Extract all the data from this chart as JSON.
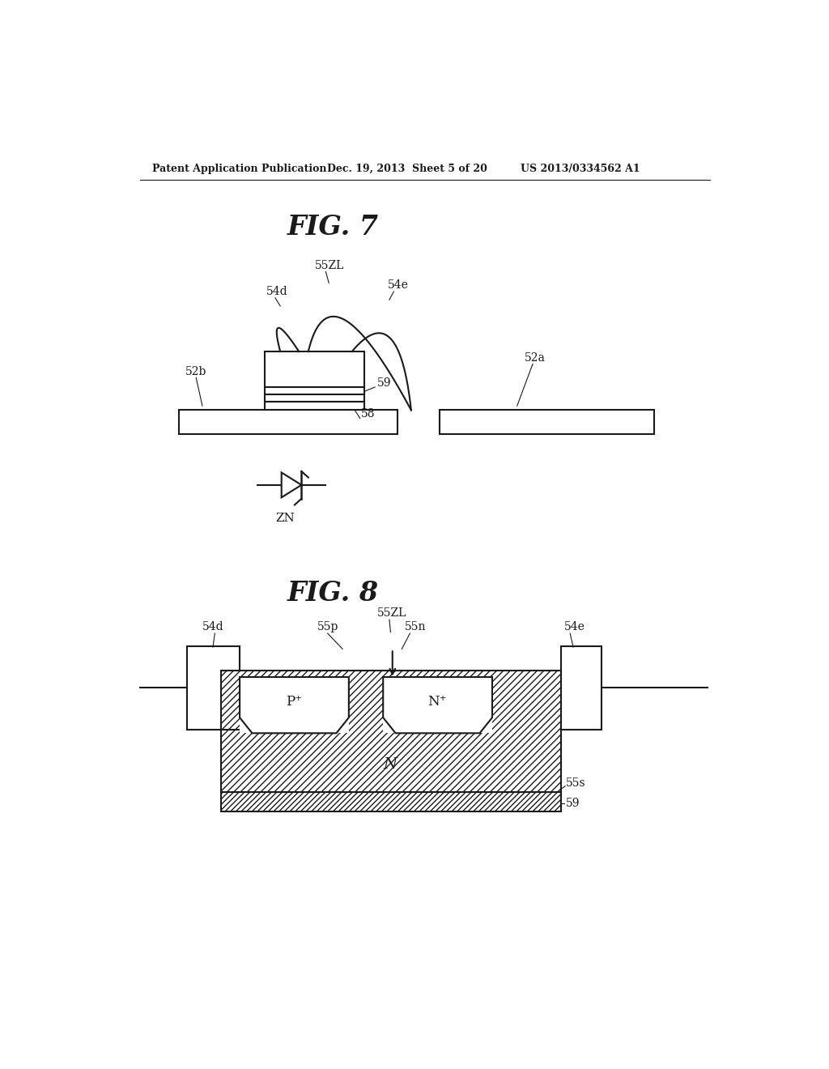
{
  "bg_color": "#ffffff",
  "line_color": "#1a1a1a",
  "header_left": "Patent Application Publication",
  "header_mid": "Dec. 19, 2013  Sheet 5 of 20",
  "header_right": "US 2013/0334562 A1",
  "fig7_title": "FIG. 7",
  "fig8_title": "FIG. 8",
  "zn_label": "ZN"
}
